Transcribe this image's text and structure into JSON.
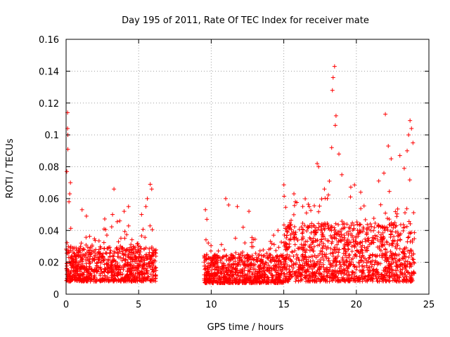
{
  "chart_data": {
    "type": "scatter",
    "title": "Day 195 of 2011, Rate Of TEC Index for receiver mate",
    "xlabel": "GPS time / hours",
    "ylabel": "ROTI / TECUs",
    "xlim": [
      0,
      25
    ],
    "ylim": [
      0,
      0.16
    ],
    "xticks": [
      0,
      5,
      10,
      15,
      20,
      25
    ],
    "yticks": [
      0,
      0.02,
      0.04,
      0.06,
      0.08,
      0.1,
      0.12,
      0.14,
      0.16
    ],
    "ytick_labels": [
      "0",
      "0.02",
      "0.04",
      "0.06",
      "0.08",
      "0.1",
      "0.12",
      "0.14",
      "0.16"
    ],
    "grid": true,
    "marker": "+",
    "color": "#ff0000",
    "segments": [
      {
        "x_start": 0.0,
        "x_end": 6.2,
        "typical": [
          0.008,
          0.03
        ],
        "peaks": [
          {
            "x": 0.1,
            "y": 0.114
          },
          {
            "x": 0.1,
            "y": 0.104
          },
          {
            "x": 0.12,
            "y": 0.1
          },
          {
            "x": 0.12,
            "y": 0.091
          },
          {
            "x": 0.05,
            "y": 0.077
          },
          {
            "x": 0.3,
            "y": 0.07
          },
          {
            "x": 0.25,
            "y": 0.063
          },
          {
            "x": 0.2,
            "y": 0.058
          },
          {
            "x": 1.1,
            "y": 0.053
          },
          {
            "x": 1.4,
            "y": 0.049
          },
          {
            "x": 3.3,
            "y": 0.066
          },
          {
            "x": 3.2,
            "y": 0.05
          },
          {
            "x": 3.7,
            "y": 0.046
          },
          {
            "x": 4.3,
            "y": 0.055
          },
          {
            "x": 4.0,
            "y": 0.052
          },
          {
            "x": 5.8,
            "y": 0.069
          },
          {
            "x": 5.9,
            "y": 0.066
          },
          {
            "x": 5.6,
            "y": 0.06
          },
          {
            "x": 5.5,
            "y": 0.055
          },
          {
            "x": 5.2,
            "y": 0.05
          }
        ]
      },
      {
        "x_start": 9.5,
        "x_end": 15.0,
        "typical": [
          0.007,
          0.025
        ],
        "peaks": [
          {
            "x": 9.6,
            "y": 0.053
          },
          {
            "x": 9.7,
            "y": 0.047
          },
          {
            "x": 11.0,
            "y": 0.06
          },
          {
            "x": 11.2,
            "y": 0.056
          },
          {
            "x": 11.8,
            "y": 0.055
          },
          {
            "x": 12.6,
            "y": 0.052
          },
          {
            "x": 12.2,
            "y": 0.042
          },
          {
            "x": 14.6,
            "y": 0.04
          },
          {
            "x": 14.3,
            "y": 0.037
          }
        ]
      },
      {
        "x_start": 15.0,
        "x_end": 24.0,
        "typical": [
          0.008,
          0.045
        ],
        "peaks": [
          {
            "x": 18.5,
            "y": 0.143
          },
          {
            "x": 18.4,
            "y": 0.136
          },
          {
            "x": 18.35,
            "y": 0.128
          },
          {
            "x": 18.6,
            "y": 0.112
          },
          {
            "x": 18.55,
            "y": 0.106
          },
          {
            "x": 18.3,
            "y": 0.092
          },
          {
            "x": 22.0,
            "y": 0.113
          },
          {
            "x": 23.7,
            "y": 0.109
          },
          {
            "x": 23.8,
            "y": 0.104
          },
          {
            "x": 23.6,
            "y": 0.1
          },
          {
            "x": 23.9,
            "y": 0.095
          },
          {
            "x": 23.5,
            "y": 0.09
          },
          {
            "x": 18.8,
            "y": 0.088
          },
          {
            "x": 17.3,
            "y": 0.082
          },
          {
            "x": 17.4,
            "y": 0.08
          },
          {
            "x": 19.0,
            "y": 0.075
          },
          {
            "x": 22.2,
            "y": 0.093
          },
          {
            "x": 22.4,
            "y": 0.085
          },
          {
            "x": 23.0,
            "y": 0.087
          },
          {
            "x": 23.3,
            "y": 0.079
          },
          {
            "x": 21.9,
            "y": 0.076
          },
          {
            "x": 15.7,
            "y": 0.063
          },
          {
            "x": 15.8,
            "y": 0.058
          },
          {
            "x": 17.8,
            "y": 0.066
          },
          {
            "x": 20.3,
            "y": 0.064
          },
          {
            "x": 19.6,
            "y": 0.061
          },
          {
            "x": 18.0,
            "y": 0.06
          }
        ]
      }
    ]
  }
}
